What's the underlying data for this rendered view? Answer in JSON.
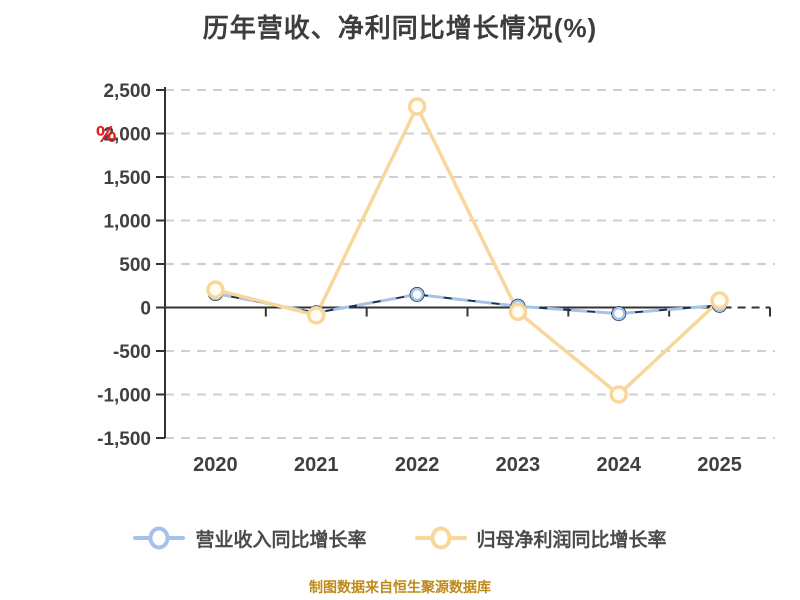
{
  "title": "历年营收、净利同比增长情况(%)",
  "y_axis_unit_mark": "%",
  "legend": {
    "items": [
      {
        "label": "营业收入同比增长率"
      },
      {
        "label": "归母净利润同比增长率"
      }
    ]
  },
  "footer": {
    "text": "制图数据来自恒生聚源数据库"
  },
  "colors": {
    "revenue_line": "#a5c3e8",
    "revenue_line_dark": "#1c3050",
    "profit_line": "#f9d79b",
    "marker_fill": "#ffffff",
    "axis_line": "#333333",
    "gridline": "#cfcfcf",
    "axis_text": "#404040",
    "unit_mark": "#e01f1f",
    "footer_text": "#bd8a1a"
  },
  "chart_data": {
    "type": "line",
    "title": "历年营收、净利同比增长情况(%)",
    "categories": [
      "2020",
      "2021",
      "2022",
      "2023",
      "2024",
      "2025"
    ],
    "series": [
      {
        "name": "营业收入同比增长率",
        "color": "#a5c3e8",
        "values": [
          160,
          -60,
          150,
          15,
          -70,
          25
        ]
      },
      {
        "name": "归母净利润同比增长率",
        "color": "#f9d79b",
        "values": [
          205,
          -90,
          2310,
          -50,
          -1000,
          80
        ]
      }
    ],
    "xlabel": "",
    "ylabel": "%",
    "ylim": [
      -1500,
      2500
    ],
    "ytick_interval": 500,
    "ytick_labels": [
      "2,500",
      "2,000",
      "1,500",
      "1,000",
      "500",
      "0",
      "-500",
      "-1,000",
      "-1,500"
    ],
    "grid": "dashed-horizontal",
    "legend_position": "bottom"
  }
}
